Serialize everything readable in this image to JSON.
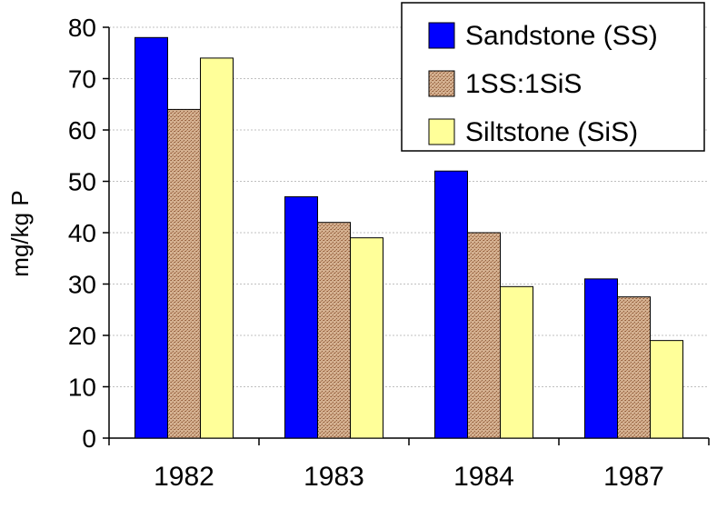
{
  "chart_data": {
    "type": "bar",
    "title": "",
    "xlabel": "",
    "ylabel": "mg/kg P",
    "ylim": [
      0,
      80
    ],
    "yticks": [
      0,
      10,
      20,
      30,
      40,
      50,
      60,
      70,
      80
    ],
    "grid": true,
    "legend_position": "top-right",
    "categories": [
      "1982",
      "1983",
      "1984",
      "1987"
    ],
    "series": [
      {
        "name": "Sandstone (SS)",
        "values": [
          78,
          47,
          52,
          31
        ],
        "color": "#0000ff",
        "pattern": "solid"
      },
      {
        "name": "1SS:1SiS",
        "values": [
          64,
          42,
          40,
          27.5
        ],
        "color": "#c8a080",
        "pattern": "stipple"
      },
      {
        "name": "Siltstone (SiS)",
        "values": [
          74,
          39,
          29.5,
          19
        ],
        "color": "#ffff99",
        "pattern": "solid"
      }
    ]
  }
}
